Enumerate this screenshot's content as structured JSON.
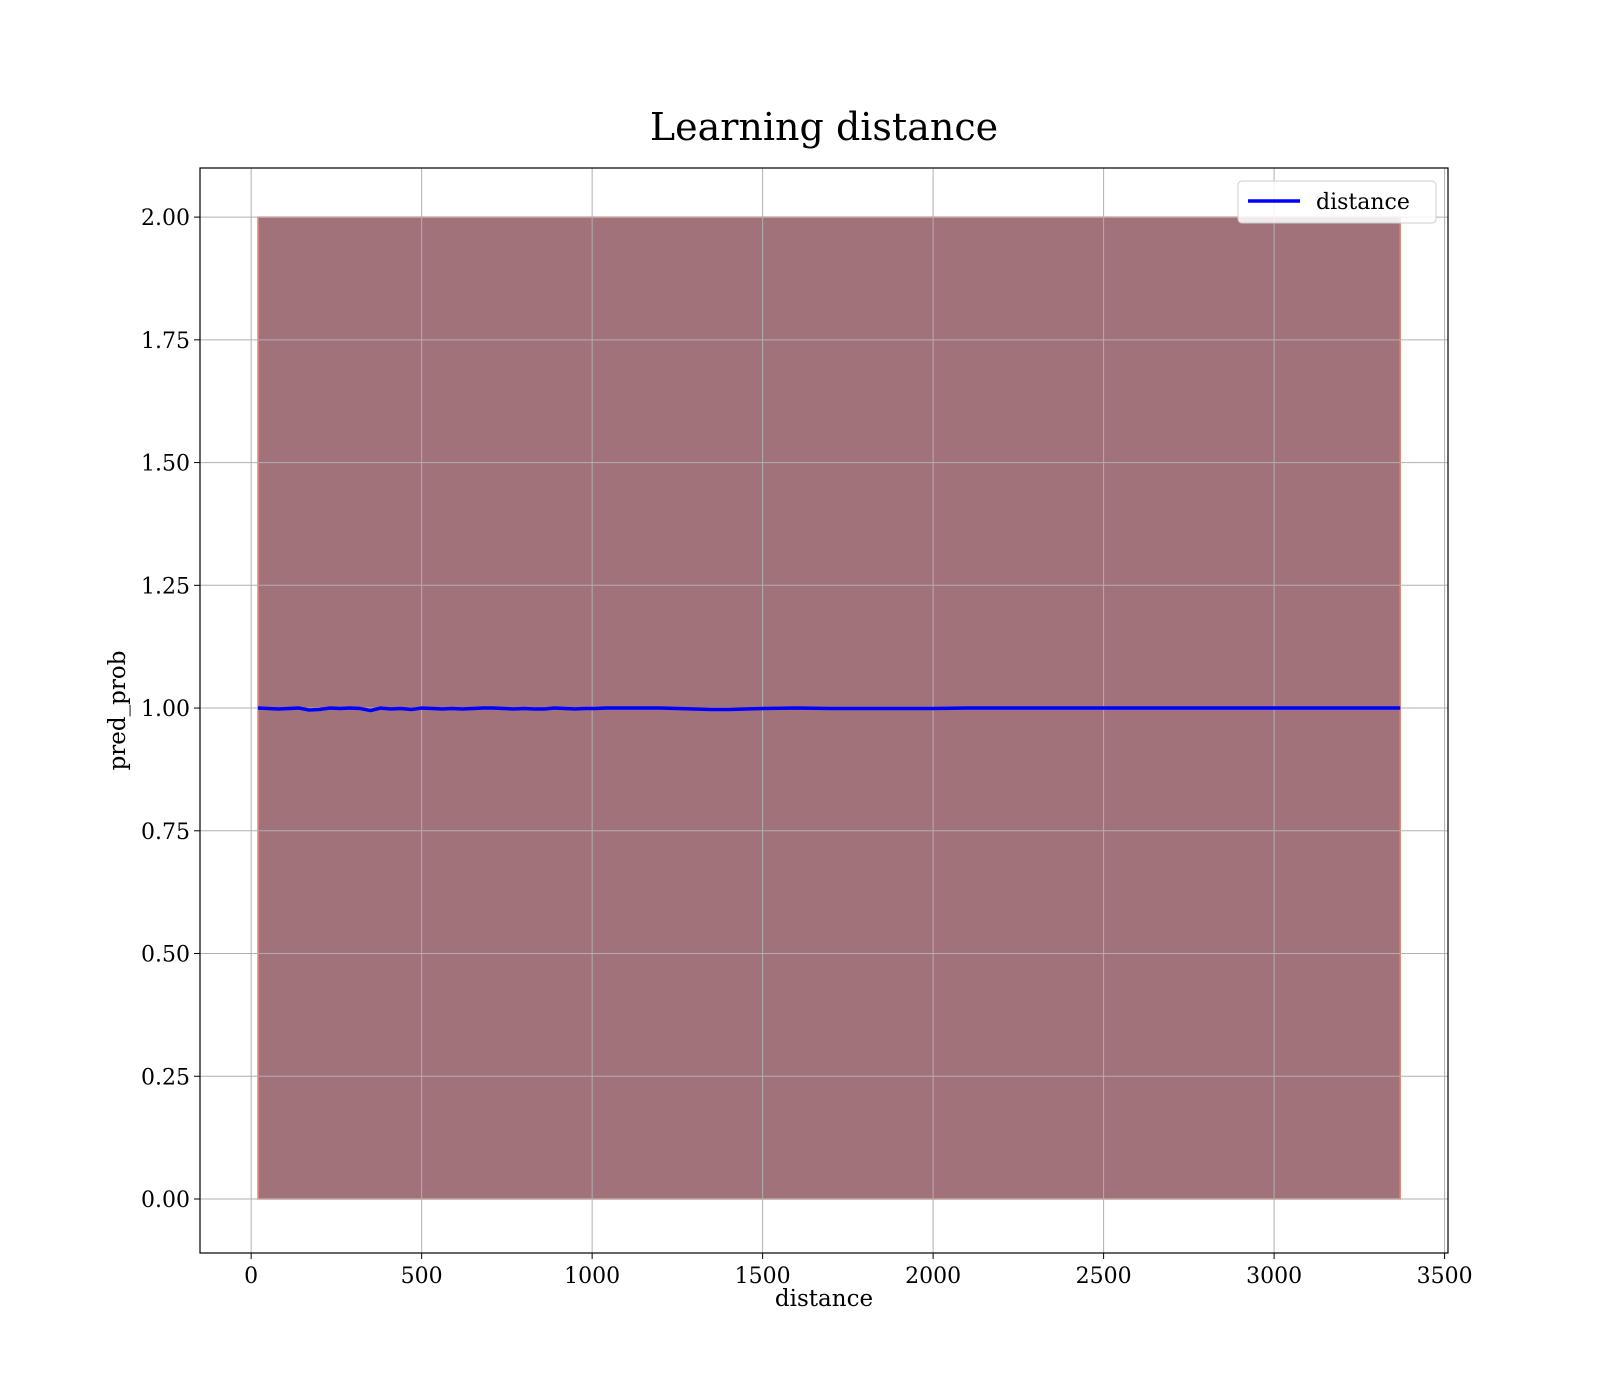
{
  "chart_data": {
    "type": "area",
    "title": "Learning distance",
    "xlabel": "distance",
    "ylabel": "pred_prob",
    "xlim": [
      -150,
      3510
    ],
    "ylim": [
      -0.11,
      2.1
    ],
    "xticks": [
      0,
      500,
      1000,
      1500,
      2000,
      2500,
      3000,
      3500
    ],
    "yticks": [
      0.0,
      0.25,
      0.5,
      0.75,
      1.0,
      1.25,
      1.5,
      1.75,
      2.0
    ],
    "xtick_labels": [
      "0",
      "500",
      "1000",
      "1500",
      "2000",
      "2500",
      "3000",
      "3500"
    ],
    "ytick_labels": [
      "0.00",
      "0.25",
      "0.50",
      "0.75",
      "1.00",
      "1.25",
      "1.50",
      "1.75",
      "2.00"
    ],
    "grid": true,
    "legend_position": "top-right",
    "series": [
      {
        "name": "distance",
        "color": "#0000ff",
        "x": [
          20,
          50,
          80,
          110,
          140,
          170,
          200,
          230,
          260,
          290,
          320,
          350,
          380,
          410,
          440,
          470,
          500,
          530,
          560,
          590,
          620,
          650,
          680,
          710,
          740,
          770,
          800,
          830,
          860,
          890,
          920,
          950,
          980,
          1010,
          1040,
          1100,
          1200,
          1300,
          1350,
          1400,
          1450,
          1500,
          1600,
          1700,
          1800,
          1900,
          2000,
          2100,
          2500,
          3000,
          3370
        ],
        "y": [
          1.0,
          0.999,
          0.998,
          0.999,
          1.0,
          0.996,
          0.997,
          1.0,
          0.999,
          1.0,
          0.999,
          0.995,
          1.0,
          0.998,
          0.999,
          0.997,
          1.0,
          0.999,
          0.998,
          0.999,
          0.998,
          0.999,
          1.0,
          1.0,
          0.999,
          0.998,
          0.999,
          0.998,
          0.998,
          1.0,
          0.999,
          0.998,
          0.999,
          0.999,
          1.0,
          1.0,
          1.0,
          0.998,
          0.997,
          0.997,
          0.998,
          0.999,
          1.0,
          0.999,
          0.999,
          0.999,
          0.999,
          1.0,
          1.0,
          1.0,
          1.0
        ]
      }
    ],
    "band": {
      "x": [
        20,
        3370
      ],
      "lower": [
        0.0,
        0.0
      ],
      "upper": [
        2.0,
        2.0
      ],
      "fill_color": "#a2727a",
      "edge_color": "#e38b7a"
    }
  }
}
